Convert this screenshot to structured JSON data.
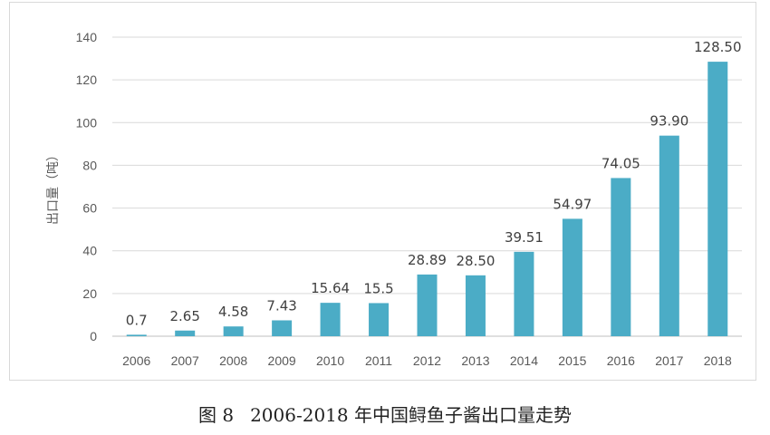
{
  "chart_data": {
    "type": "bar",
    "categories": [
      "2006",
      "2007",
      "2008",
      "2009",
      "2010",
      "2011",
      "2012",
      "2013",
      "2014",
      "2015",
      "2016",
      "2017",
      "2018"
    ],
    "values": [
      0.7,
      2.65,
      4.58,
      7.43,
      15.64,
      15.5,
      28.89,
      28.5,
      39.51,
      54.97,
      74.05,
      93.9,
      128.5
    ],
    "data_labels": [
      "0.7",
      "2.65",
      "4.58",
      "7.43",
      "15.64",
      "15.5",
      "28.89",
      "28.50",
      "39.51",
      "54.97",
      "74.05",
      "93.90",
      "128.50"
    ],
    "ylabel": "出口量（吨）",
    "ylim": [
      0,
      140
    ],
    "yticks": [
      0,
      20,
      40,
      60,
      80,
      100,
      120,
      140
    ],
    "grid": true,
    "bar_color": "#4bacc6",
    "grid_color": "#d9d9d9"
  },
  "caption": {
    "figure_no": "图 8",
    "text": "2006-2018 年中国鲟鱼子酱出口量走势"
  }
}
